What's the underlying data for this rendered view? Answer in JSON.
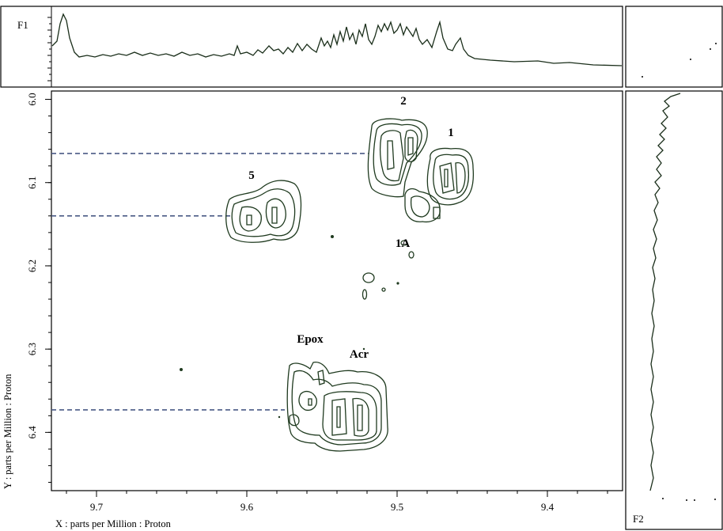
{
  "chart_data": {
    "type": "2d-nmr-contour",
    "f1_label": "F1",
    "f2_label": "F2",
    "xlabel": "X : parts per Million : Proton",
    "ylabel": "Y : parts per Million : Proton",
    "x_ticks": [
      "9.7",
      "9.6",
      "9.5",
      "9.4"
    ],
    "y_ticks": [
      "6.0",
      "6.1",
      "6.2",
      "6.3",
      "6.4"
    ],
    "x_range": [
      9.73,
      9.35
    ],
    "y_range": [
      5.99,
      6.47
    ],
    "x_reversed": true,
    "peaks": [
      {
        "label": "2",
        "x": 9.506,
        "y": 6.072
      },
      {
        "label": "1",
        "x": 9.478,
        "y": 6.095
      },
      {
        "label": "1A",
        "x": 9.495,
        "y": 6.128
      },
      {
        "label": "5",
        "x": 9.578,
        "y": 6.135
      },
      {
        "label": "Epox",
        "x": 9.55,
        "y": 6.37
      },
      {
        "label": "Acr",
        "x": 9.526,
        "y": 6.38
      }
    ],
    "guide_lines_y": [
      6.065,
      6.14,
      6.373
    ]
  }
}
